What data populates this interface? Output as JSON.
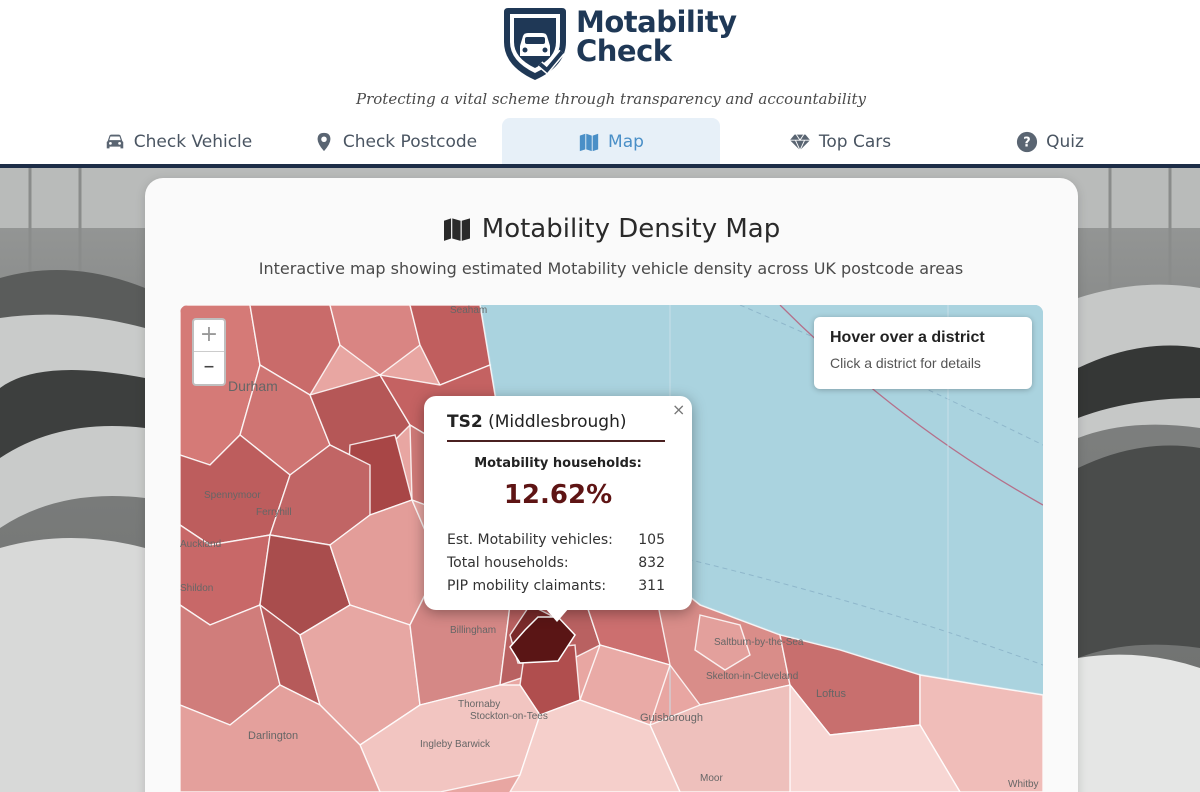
{
  "brand": {
    "name_line1": "Motability",
    "name_line2": "Check",
    "tagline": "Protecting a vital scheme through transparency and accountability",
    "color": "#1f3856"
  },
  "nav": {
    "items": [
      {
        "label": "Check Vehicle",
        "icon": "car-icon",
        "active": false
      },
      {
        "label": "Check Postcode",
        "icon": "map-pin-icon",
        "active": false
      },
      {
        "label": "Map",
        "icon": "map-icon",
        "active": true
      },
      {
        "label": "Top Cars",
        "icon": "diamond-icon",
        "active": false
      },
      {
        "label": "Quiz",
        "icon": "question-circle-icon",
        "active": false
      }
    ],
    "active_color": "#4a8fc7",
    "bar_color": "#1d2d47"
  },
  "page": {
    "title": "Motability Density Map",
    "subtitle": "Interactive map showing estimated Motability vehicle density across UK postcode areas"
  },
  "map": {
    "zoom_in": "+",
    "zoom_out": "–",
    "place_labels": [
      "Durham",
      "Spennymoor",
      "Ferryhill",
      "Auckland",
      "Shildon",
      "Darlington",
      "Stockton-on-Tees",
      "Thornaby",
      "Ingleby Barwick",
      "Guisborough",
      "Saltburn-by-the-Sea",
      "Skelton-in-Cleveland",
      "Loftus",
      "Whitby",
      "Moor",
      "Billingham",
      "Seaham"
    ],
    "info_box": {
      "title": "Hover over a district",
      "subtitle": "Click a district for details"
    },
    "popup": {
      "close": "×",
      "postcode": "TS2",
      "area": "(Middlesbrough)",
      "households_label": "Motability households:",
      "households_pct": "12.62%",
      "rows": [
        {
          "label": "Est. Motability vehicles:",
          "value": "105"
        },
        {
          "label": "Total households:",
          "value": "832"
        },
        {
          "label": "PIP mobility claimants:",
          "value": "311"
        }
      ]
    }
  }
}
